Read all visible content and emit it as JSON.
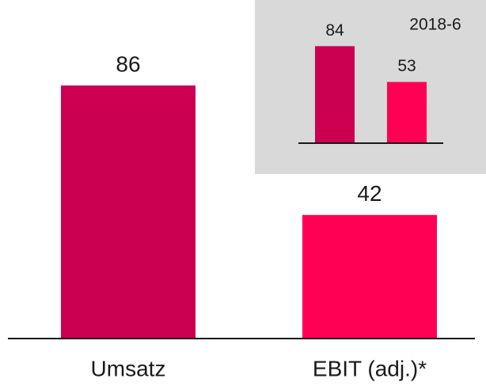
{
  "chart_data": [
    {
      "type": "bar",
      "categories": [
        "Umsatz",
        "EBIT (adj.)*"
      ],
      "values": [
        86,
        42
      ],
      "colors": [
        "#cc0050",
        "#ff0055"
      ]
    },
    {
      "type": "bar",
      "title": "2018-6",
      "categories": [
        null,
        null
      ],
      "values": [
        84,
        53
      ],
      "colors": [
        "#cc0050",
        "#ff0055"
      ],
      "background": "#d9d9d9"
    }
  ]
}
